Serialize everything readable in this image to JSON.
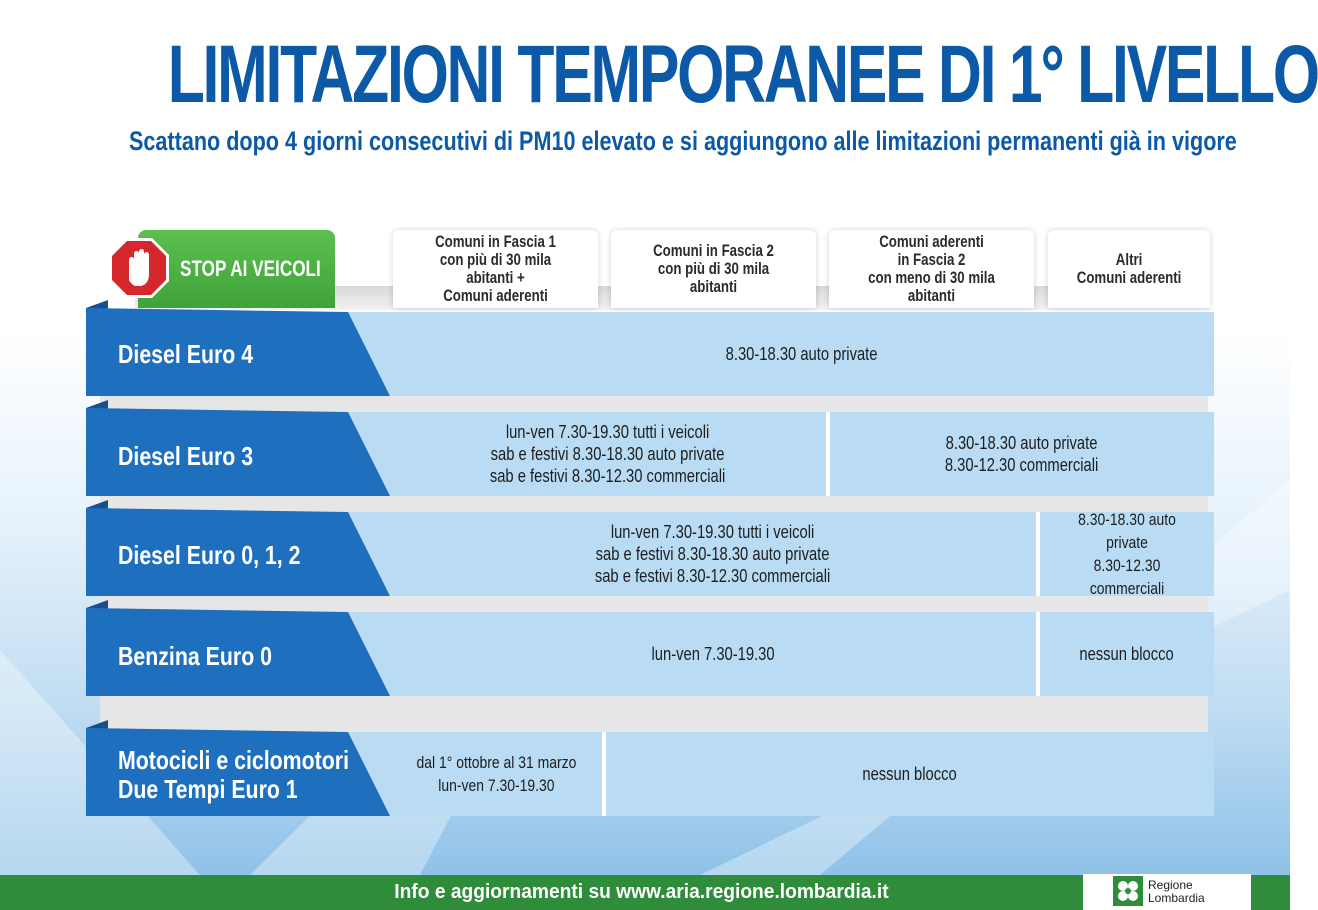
{
  "title": "LIMITAZIONI TEMPORANEE DI 1° LIVELLO",
  "subtitle": "Scattano dopo 4 giorni consecutivi di PM10 elevato e si aggiungono alle limitazioni permanenti già in vigore",
  "stop_label": "STOP AI VEICOLI",
  "columns": [
    "Comuni in Fascia 1\ncon più di 30 mila abitanti +\nComuni aderenti",
    "Comuni in Fascia 2\ncon più di 30 mila abitanti",
    "Comuni aderenti\nin Fascia 2\ncon meno di 30 mila abitanti",
    "Altri\nComuni aderenti"
  ],
  "rows": [
    {
      "label": "Diesel Euro 4",
      "cells": [
        "8.30-18.30 auto private"
      ]
    },
    {
      "label": "Diesel Euro 3",
      "cells": [
        "lun-ven 7.30-19.30 tutti i veicoli\nsab e festivi 8.30-18.30 auto private\nsab e festivi 8.30-12.30 commerciali",
        "8.30-18.30 auto private\n8.30-12.30 commerciali"
      ]
    },
    {
      "label": "Diesel Euro 0, 1, 2",
      "cells": [
        "lun-ven 7.30-19.30 tutti i veicoli\nsab e festivi 8.30-18.30 auto private\nsab e festivi 8.30-12.30 commerciali",
        "8.30-18.30 auto private\n8.30-12.30 commerciali"
      ]
    },
    {
      "label": "Benzina Euro 0",
      "cells": [
        "lun-ven 7.30-19.30",
        "nessun blocco"
      ]
    },
    {
      "label": "Motocicli e ciclomotori\nDue Tempi Euro 1",
      "cells": [
        "dal 1° ottobre al 31 marzo\nlun-ven 7.30-19.30",
        "nessun blocco"
      ]
    }
  ],
  "footer": "Info e aggiornamenti su www.aria.regione.lombardia.it",
  "logo_text": "Regione\nLombardia",
  "colors": {
    "title_blue": "#0b59a7",
    "label_blue": "#1f6fbf",
    "cell_blue": "#b9dcf4",
    "stop_green": "#4cb146",
    "footer_green": "#2f8c3a",
    "stop_red": "#d6282c"
  },
  "icons": [
    "stop-hand-icon",
    "regione-lombardia-logo-icon"
  ]
}
